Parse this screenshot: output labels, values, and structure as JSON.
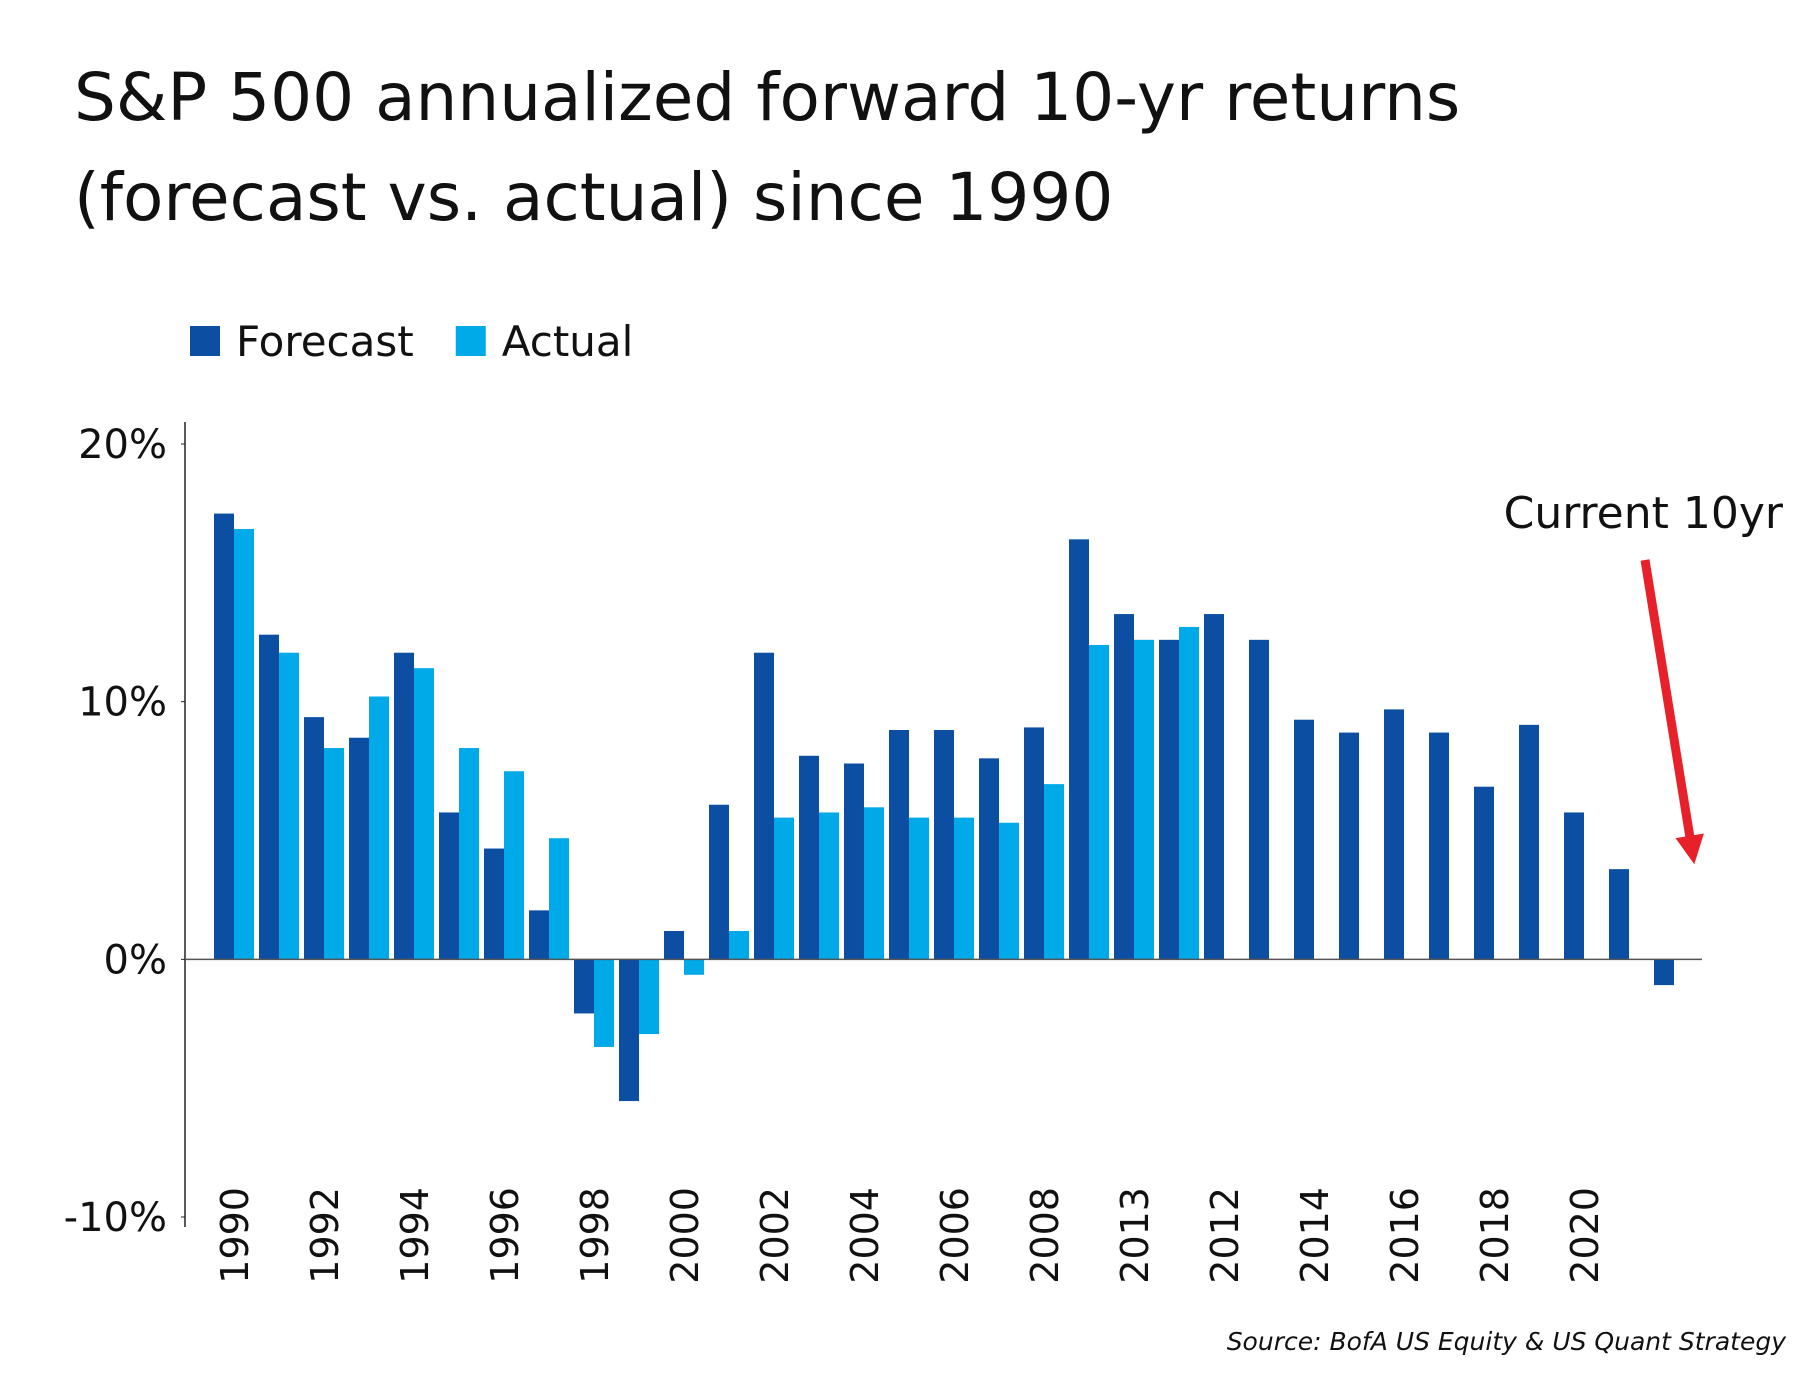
{
  "chart_data": {
    "type": "bar",
    "title": "S&P 500 annualized forward 10-yr returns (forecast vs. actual) since 1990",
    "categories": [
      "1990",
      null,
      "1992",
      null,
      "1994",
      null,
      "1996",
      null,
      "1998",
      null,
      "2000",
      null,
      "2002",
      null,
      "2004",
      null,
      "2006",
      null,
      "2008",
      null,
      "2013",
      null,
      "2012",
      null,
      "2014",
      null,
      "2016",
      null,
      "2018",
      null,
      "2020",
      null,
      null
    ],
    "series": [
      {
        "name": "Forecast",
        "color": "#0b4ea2",
        "values": [
          17.3,
          12.6,
          9.4,
          8.6,
          11.9,
          5.7,
          4.3,
          1.9,
          -2.1,
          -5.5,
          1.1,
          6.0,
          11.9,
          7.9,
          7.6,
          8.9,
          8.9,
          7.8,
          9.0,
          16.3,
          13.4,
          12.4,
          13.4,
          12.4,
          9.3,
          8.8,
          9.7,
          8.8,
          6.7,
          9.1,
          5.7,
          3.5,
          -1.0
        ]
      },
      {
        "name": "Actual",
        "color": "#00a9e8",
        "values": [
          16.7,
          11.9,
          8.2,
          10.2,
          11.3,
          8.2,
          7.3,
          4.7,
          -3.4,
          -2.9,
          -0.6,
          1.1,
          5.5,
          5.7,
          5.9,
          5.5,
          5.5,
          5.3,
          6.8,
          12.2,
          12.4,
          12.9,
          null,
          null,
          null,
          null,
          null,
          null,
          null,
          null,
          null,
          null,
          null
        ]
      }
    ],
    "ylim": [
      -10,
      20
    ],
    "yticks": [
      {
        "value": -10,
        "label": "-10%"
      },
      {
        "value": 0,
        "label": "0%"
      },
      {
        "value": 10,
        "label": "10%"
      },
      {
        "value": 20,
        "label": "20%"
      }
    ],
    "legend": "top-left",
    "annotation": "Current 10yr",
    "source": "Source: BofA US Equity & US Quant Strategy"
  }
}
